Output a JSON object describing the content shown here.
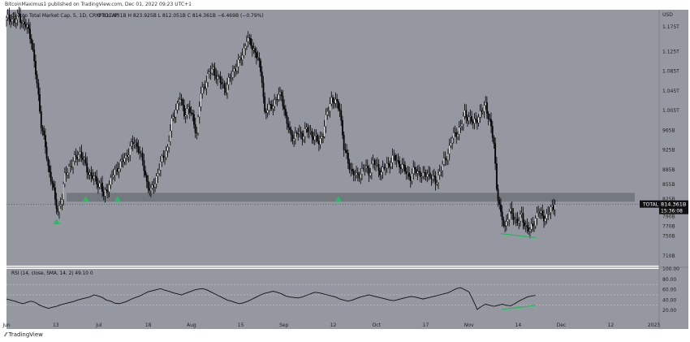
{
  "header": {
    "publisher": "BitcoinMaximus1 published on TradingView.com, Dec 01, 2022 09:23 UTC+1"
  },
  "main_legend": {
    "symbol": "Crypto Total Market Cap, 5, 1D, CRYPTOCAP",
    "ohlc": "O 817.831B  H 823.925B  L 812.051B  C 814.361B  −6.469B (−0.79%)"
  },
  "price_axis": {
    "currency": "USD",
    "ticks": [
      "1.175T",
      "1.125T",
      "1.085T",
      "1.045T",
      "1.005T",
      "965B",
      "925B",
      "885B",
      "855B",
      "825B",
      "790B",
      "770B",
      "750B",
      "710B"
    ]
  },
  "price_label": {
    "name": "TOTAL",
    "value": "814.361B",
    "countdown": "15:36:08"
  },
  "rsi_legend": "RSI (14, close, SMA, 14, 2)  49.10  0",
  "rsi_axis": {
    "ticks": [
      "100.00",
      "80.00",
      "60.00",
      "40.00",
      "20.00"
    ]
  },
  "time_axis": {
    "ticks": [
      "Jun",
      "13",
      "Jul",
      "18",
      "Aug",
      "15",
      "Sep",
      "12",
      "Oct",
      "17",
      "Nov",
      "14",
      "Dec",
      "12",
      "2023"
    ]
  },
  "footer": {
    "brand": "TradingView"
  },
  "colors": {
    "chart_bg": "#9598a1",
    "up_candle": "#ffffff",
    "down_candle": "#000000",
    "support_zone": "#6f7279",
    "triangle": "#20c05c",
    "divergence": "#1fbd58",
    "rsi_line": "#111111"
  },
  "chart_data": [
    {
      "type": "candlestick",
      "title": "Crypto Total Market Cap, 5, 1D, CRYPTOCAP",
      "ylabel": "USD",
      "ylim": [
        690,
        1210
      ],
      "x_ticks": [
        "Jun",
        "13",
        "Jul",
        "18",
        "Aug",
        "15",
        "Sep",
        "12",
        "Oct",
        "17",
        "Nov",
        "14",
        "Dec",
        "12",
        "2023"
      ],
      "last_close": 814.361,
      "support_zone": [
        820,
        838
      ],
      "close_path": [
        [
          0,
          1190
        ],
        [
          3,
          1195
        ],
        [
          6,
          1185
        ],
        [
          9,
          1200
        ],
        [
          12,
          1180
        ],
        [
          15,
          1175
        ],
        [
          18,
          1150
        ],
        [
          20,
          1100
        ],
        [
          22,
          1060
        ],
        [
          25,
          980
        ],
        [
          28,
          930
        ],
        [
          30,
          890
        ],
        [
          33,
          860
        ],
        [
          35,
          820
        ],
        [
          37,
          800
        ],
        [
          40,
          830
        ],
        [
          42,
          870
        ],
        [
          45,
          890
        ],
        [
          48,
          900
        ],
        [
          50,
          910
        ],
        [
          53,
          920
        ],
        [
          56,
          900
        ],
        [
          59,
          880
        ],
        [
          62,
          870
        ],
        [
          65,
          860
        ],
        [
          68,
          855
        ],
        [
          70,
          830
        ],
        [
          73,
          850
        ],
        [
          76,
          870
        ],
        [
          80,
          890
        ],
        [
          83,
          900
        ],
        [
          86,
          910
        ],
        [
          89,
          930
        ],
        [
          92,
          940
        ],
        [
          95,
          930
        ],
        [
          98,
          900
        ],
        [
          101,
          860
        ],
        [
          104,
          840
        ],
        [
          107,
          860
        ],
        [
          110,
          890
        ],
        [
          113,
          910
        ],
        [
          116,
          930
        ],
        [
          119,
          980
        ],
        [
          122,
          1010
        ],
        [
          125,
          1030
        ],
        [
          128,
          1000
        ],
        [
          131,
          1010
        ],
        [
          134,
          990
        ],
        [
          137,
          960
        ],
        [
          140,
          1040
        ],
        [
          143,
          1060
        ],
        [
          146,
          1080
        ],
        [
          149,
          1090
        ],
        [
          152,
          1070
        ],
        [
          155,
          1060
        ],
        [
          158,
          1050
        ],
        [
          161,
          1070
        ],
        [
          164,
          1090
        ],
        [
          167,
          1100
        ],
        [
          170,
          1120
        ],
        [
          173,
          1150
        ],
        [
          176,
          1140
        ],
        [
          178,
          1130
        ],
        [
          181,
          1110
        ],
        [
          184,
          1070
        ],
        [
          186,
          1000
        ],
        [
          189,
          1010
        ],
        [
          192,
          1020
        ],
        [
          195,
          1030
        ],
        [
          198,
          1040
        ],
        [
          201,
          990
        ],
        [
          204,
          960
        ],
        [
          207,
          950
        ],
        [
          210,
          960
        ],
        [
          213,
          955
        ],
        [
          216,
          965
        ],
        [
          219,
          960
        ],
        [
          222,
          950
        ],
        [
          225,
          940
        ],
        [
          228,
          960
        ],
        [
          231,
          1000
        ],
        [
          234,
          1030
        ],
        [
          237,
          1020
        ],
        [
          240,
          1010
        ],
        [
          243,
          930
        ],
        [
          246,
          900
        ],
        [
          249,
          880
        ],
        [
          252,
          870
        ],
        [
          255,
          880
        ],
        [
          258,
          890
        ],
        [
          261,
          880
        ],
        [
          264,
          900
        ],
        [
          267,
          890
        ],
        [
          270,
          880
        ],
        [
          273,
          890
        ],
        [
          276,
          900
        ],
        [
          279,
          910
        ],
        [
          282,
          900
        ],
        [
          285,
          890
        ],
        [
          288,
          880
        ],
        [
          291,
          870
        ],
        [
          294,
          885
        ],
        [
          297,
          880
        ],
        [
          300,
          870
        ],
        [
          303,
          880
        ],
        [
          306,
          870
        ],
        [
          309,
          860
        ],
        [
          312,
          880
        ],
        [
          315,
          900
        ],
        [
          318,
          920
        ],
        [
          321,
          950
        ],
        [
          324,
          960
        ],
        [
          327,
          970
        ],
        [
          330,
          1000
        ],
        [
          333,
          990
        ],
        [
          336,
          980
        ],
        [
          339,
          990
        ],
        [
          342,
          1000
        ],
        [
          345,
          1020
        ],
        [
          348,
          980
        ],
        [
          351,
          940
        ],
        [
          353,
          850
        ],
        [
          356,
          790
        ],
        [
          359,
          770
        ],
        [
          362,
          800
        ],
        [
          365,
          790
        ],
        [
          368,
          780
        ],
        [
          371,
          790
        ],
        [
          374,
          770
        ],
        [
          377,
          760
        ],
        [
          380,
          780
        ],
        [
          383,
          800
        ],
        [
          386,
          790
        ],
        [
          389,
          790
        ],
        [
          392,
          805
        ],
        [
          395,
          814
        ]
      ],
      "support_triangles_day": [
        36,
        57,
        80,
        239
      ],
      "divergence_line_days": [
        [
          356,
          755
        ],
        [
          381,
          747
        ]
      ]
    },
    {
      "type": "line",
      "title": "RSI (14, close, SMA, 14, 2)",
      "ylim": [
        0,
        100
      ],
      "last_value": 49.1,
      "levels": [
        30,
        50,
        70
      ],
      "x_day_step": 3,
      "values": [
        42,
        40,
        38,
        35,
        33,
        36,
        38,
        35,
        30,
        27,
        24,
        26,
        28,
        31,
        33,
        35,
        37,
        40,
        42,
        44,
        46,
        50,
        48,
        45,
        40,
        38,
        34,
        33,
        35,
        38,
        42,
        45,
        48,
        52,
        56,
        58,
        60,
        62,
        59,
        57,
        54,
        52,
        50,
        53,
        56,
        59,
        61,
        62,
        60,
        56,
        52,
        48,
        44,
        40,
        38,
        35,
        33,
        35,
        38,
        42,
        46,
        50,
        53,
        55,
        57,
        55,
        52,
        48,
        46,
        45,
        44,
        46,
        49,
        52,
        55,
        54,
        52,
        50,
        48,
        46,
        42,
        40,
        38,
        40,
        43,
        46,
        48,
        50,
        48,
        46,
        44,
        42,
        40,
        39,
        41,
        43,
        45,
        47,
        46,
        44,
        42,
        44,
        46,
        48,
        50,
        52,
        54,
        58,
        62,
        64,
        60,
        56,
        40,
        22,
        28,
        32,
        30,
        28,
        30,
        32,
        30,
        29,
        33,
        38,
        42,
        46,
        48,
        49
      ]
    }
  ]
}
